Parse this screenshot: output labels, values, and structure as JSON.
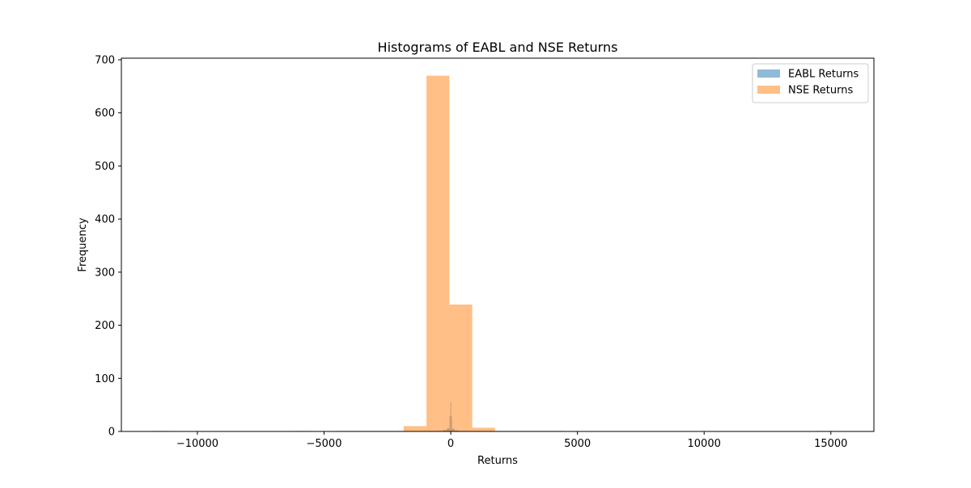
{
  "chart_data": {
    "type": "bar",
    "title": "Histograms of EABL and NSE Returns",
    "xlabel": "Returns",
    "ylabel": "Frequency",
    "xlim": [
      -13000,
      16700
    ],
    "ylim": [
      0,
      703
    ],
    "xticks": [
      -10000,
      -5000,
      0,
      5000,
      10000,
      15000
    ],
    "xtick_labels": [
      "−10000",
      "−5000",
      "0",
      "5000",
      "10000",
      "15000"
    ],
    "yticks": [
      0,
      100,
      200,
      300,
      400,
      500,
      600,
      700
    ],
    "ytick_labels": [
      "0",
      "100",
      "200",
      "300",
      "400",
      "500",
      "600",
      "700"
    ],
    "grid": false,
    "legend_position": "top-right",
    "series": [
      {
        "name": "EABL Returns",
        "color": "#1f77b4",
        "opacity": 0.5,
        "bins": [
          {
            "x0": -600,
            "x1": -300,
            "count": 1
          },
          {
            "x0": -300,
            "x1": -150,
            "count": 3
          },
          {
            "x0": -150,
            "x1": -50,
            "count": 6
          },
          {
            "x0": -50,
            "x1": -15,
            "count": 30
          },
          {
            "x0": -15,
            "x1": 15,
            "count": 55
          },
          {
            "x0": 15,
            "x1": 50,
            "count": 28
          },
          {
            "x0": 50,
            "x1": 150,
            "count": 5
          },
          {
            "x0": 150,
            "x1": 300,
            "count": 2
          },
          {
            "x0": 300,
            "x1": 600,
            "count": 1
          }
        ]
      },
      {
        "name": "NSE Returns",
        "color": "#ff7f0e",
        "opacity": 0.5,
        "bins": [
          {
            "x0": -11796.1,
            "x1": -10893.0,
            "count": 1
          },
          {
            "x0": -10893.0,
            "x1": -9989.9,
            "count": 0
          },
          {
            "x0": -9989.9,
            "x1": -9086.8,
            "count": 0
          },
          {
            "x0": -9086.8,
            "x1": -8183.7,
            "count": 0
          },
          {
            "x0": -8183.7,
            "x1": -7280.6,
            "count": 0
          },
          {
            "x0": -7280.6,
            "x1": -6377.5,
            "count": 0
          },
          {
            "x0": -6377.5,
            "x1": -5474.4,
            "count": 1
          },
          {
            "x0": -5474.4,
            "x1": -4571.3,
            "count": 0
          },
          {
            "x0": -4571.3,
            "x1": -3668.2,
            "count": 1
          },
          {
            "x0": -3668.2,
            "x1": -2765.1,
            "count": 1
          },
          {
            "x0": -2765.1,
            "x1": -1862.0,
            "count": 1
          },
          {
            "x0": -1862.0,
            "x1": -958.9,
            "count": 10
          },
          {
            "x0": -958.9,
            "x1": -55.8,
            "count": 670
          },
          {
            "x0": -55.8,
            "x1": 847.3,
            "count": 239
          },
          {
            "x0": 847.3,
            "x1": 1750.4,
            "count": 7
          },
          {
            "x0": 1750.4,
            "x1": 2653.5,
            "count": 1
          },
          {
            "x0": 2653.5,
            "x1": 3556.6,
            "count": 1
          },
          {
            "x0": 3556.6,
            "x1": 4459.7,
            "count": 1
          },
          {
            "x0": 4459.7,
            "x1": 5362.8,
            "count": 0
          },
          {
            "x0": 5362.8,
            "x1": 6265.9,
            "count": 0
          },
          {
            "x0": 6265.9,
            "x1": 7169.0,
            "count": 0
          },
          {
            "x0": 7169.0,
            "x1": 8072.1,
            "count": 0
          },
          {
            "x0": 8072.1,
            "x1": 8975.2,
            "count": 0
          },
          {
            "x0": 8975.2,
            "x1": 9878.3,
            "count": 0
          },
          {
            "x0": 9878.3,
            "x1": 10781.4,
            "count": 0
          },
          {
            "x0": 10781.4,
            "x1": 11684.5,
            "count": 0
          },
          {
            "x0": 11684.5,
            "x1": 12587.6,
            "count": 0
          },
          {
            "x0": 12587.6,
            "x1": 13490.7,
            "count": 0
          },
          {
            "x0": 13490.7,
            "x1": 14393.8,
            "count": 0
          },
          {
            "x0": 14393.8,
            "x1": 15296.9,
            "count": 1
          }
        ]
      }
    ]
  }
}
